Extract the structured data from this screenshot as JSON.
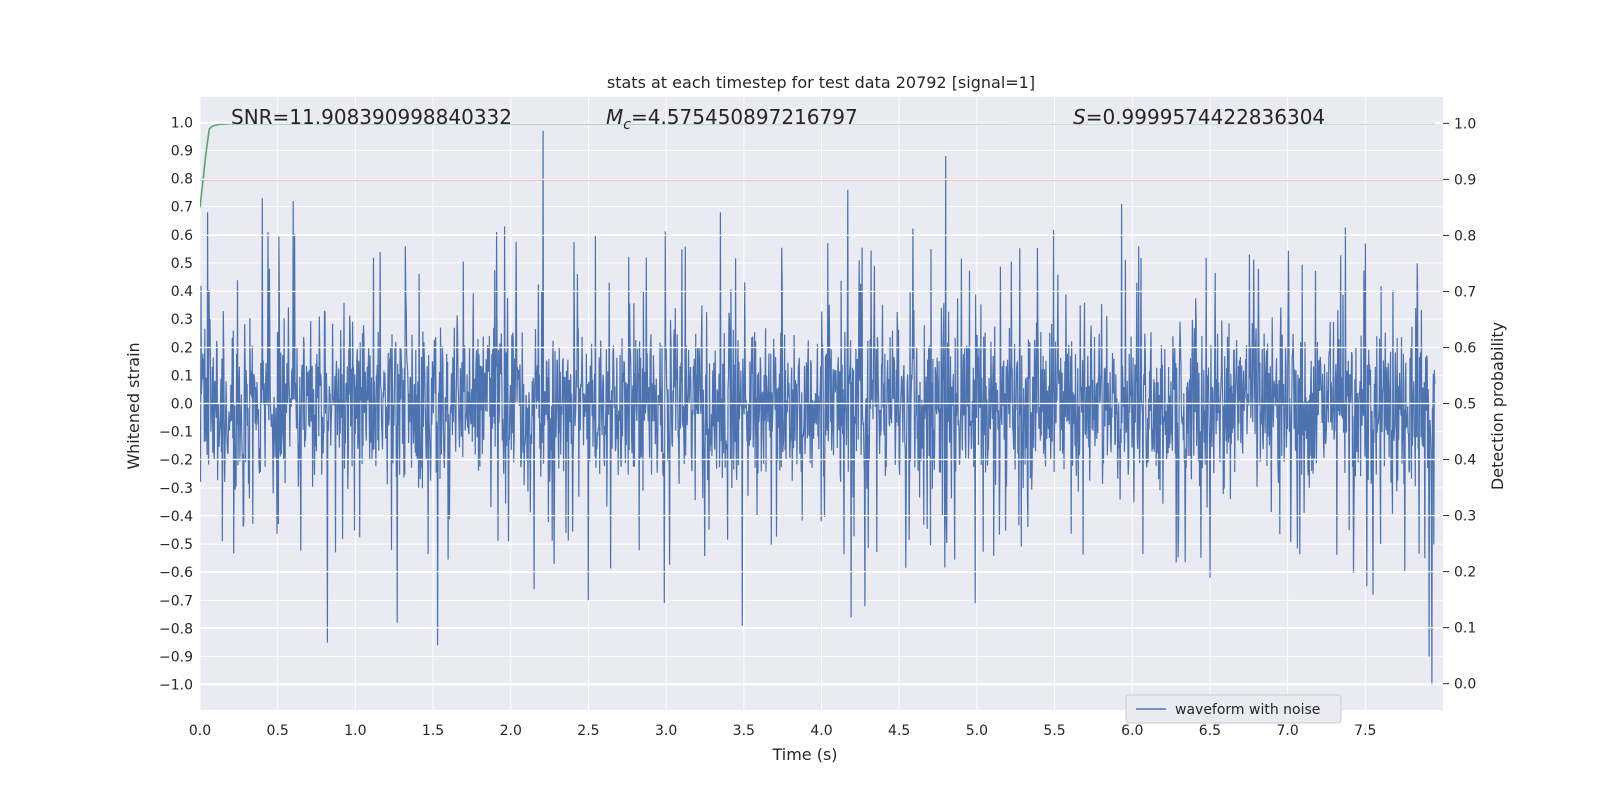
{
  "chart_data": {
    "type": "line",
    "title": "stats at each timestep for test data 20792 [signal=1]",
    "xlabel": "Time (s)",
    "ylabel": "Whitened strain",
    "y2label": "Detection probability",
    "xlim": [
      0.0,
      8.0
    ],
    "ylim": [
      -1.09,
      1.09
    ],
    "y2lim": [
      -0.047,
      1.047
    ],
    "xticks": [
      "0.0",
      "0.5",
      "1.0",
      "1.5",
      "2.0",
      "2.5",
      "3.0",
      "3.5",
      "4.0",
      "4.5",
      "5.0",
      "5.5",
      "6.0",
      "6.5",
      "7.0",
      "7.5"
    ],
    "yticks": [
      "1.0",
      "0.9",
      "0.8",
      "0.7",
      "0.6",
      "0.5",
      "0.4",
      "0.3",
      "0.2",
      "0.1",
      "0.0",
      "−0.1",
      "−0.2",
      "−0.3",
      "−0.4",
      "−0.5",
      "−0.6",
      "−0.7",
      "−0.8",
      "−0.9",
      "−1.0"
    ],
    "y2ticks": [
      "1.0",
      "0.9",
      "0.8",
      "0.7",
      "0.6",
      "0.5",
      "0.4",
      "0.3",
      "0.2",
      "0.1",
      "0.0"
    ],
    "grid": true,
    "annotations": {
      "snr": "SNR=11.908390998840332",
      "mc_symbol": "M",
      "mc_subscript": "c",
      "mc_value": "=4.575450897216797",
      "s_symbol": "S",
      "s_value": "=0.9999574422836304"
    },
    "series": [
      {
        "name": "waveform with noise",
        "axis": "left",
        "color": "#4c72b0",
        "note_envelope": "dense noisy strain, core roughly ±0.2, spikes to ±0.7",
        "spikes": [
          {
            "x": 0.05,
            "y": 0.68
          },
          {
            "x": 0.4,
            "y": 0.73
          },
          {
            "x": 0.6,
            "y": 0.72
          },
          {
            "x": 0.82,
            "y": -0.85
          },
          {
            "x": 1.27,
            "y": -0.78
          },
          {
            "x": 1.53,
            "y": -0.86
          },
          {
            "x": 2.21,
            "y": 0.97
          },
          {
            "x": 2.15,
            "y": -0.66
          },
          {
            "x": 2.5,
            "y": -0.7
          },
          {
            "x": 2.99,
            "y": -0.71
          },
          {
            "x": 3.35,
            "y": 0.68
          },
          {
            "x": 3.49,
            "y": -0.79
          },
          {
            "x": 4.17,
            "y": 0.76
          },
          {
            "x": 4.19,
            "y": -0.76
          },
          {
            "x": 4.28,
            "y": -0.72
          },
          {
            "x": 4.8,
            "y": 0.88
          },
          {
            "x": 4.99,
            "y": -0.71
          },
          {
            "x": 5.93,
            "y": 0.71
          },
          {
            "x": 6.5,
            "y": -0.62
          },
          {
            "x": 7.55,
            "y": -0.68
          },
          {
            "x": 7.91,
            "y": -0.9
          },
          {
            "x": 7.93,
            "y": -1.0
          }
        ]
      },
      {
        "name": "",
        "axis": "right",
        "color": "#55a868",
        "x": [
          0.0,
          0.02,
          0.04,
          0.06,
          0.08,
          0.12,
          0.2,
          7.95
        ],
        "values": [
          0.85,
          0.9,
          0.95,
          0.99,
          0.995,
          0.998,
          0.9995,
          0.9999
        ]
      },
      {
        "name": "",
        "axis": "right",
        "color": "#c44e52",
        "x": [
          0.0,
          8.0
        ],
        "values": [
          0.9,
          0.9
        ]
      }
    ],
    "legend": {
      "placement": "lower-right",
      "entries": [
        "waveform with noise"
      ]
    }
  }
}
